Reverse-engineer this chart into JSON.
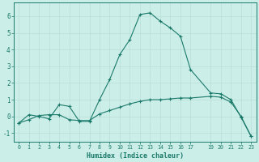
{
  "xlabel": "Humidex (Indice chaleur)",
  "bg_color": "#cceee8",
  "line_color": "#1a7a6a",
  "grid_color": "#b8ddd8",
  "curve1_x": [
    0,
    1,
    2,
    3,
    4,
    5,
    6,
    7,
    8,
    9,
    10,
    11,
    12,
    13,
    14,
    15,
    16,
    17,
    19,
    20,
    21,
    22,
    23
  ],
  "curve1_y": [
    -0.4,
    0.1,
    0.0,
    -0.15,
    0.7,
    0.6,
    -0.3,
    -0.3,
    1.0,
    2.2,
    3.7,
    4.6,
    6.1,
    6.2,
    5.7,
    5.3,
    4.8,
    2.8,
    1.4,
    1.35,
    1.0,
    -0.05,
    -1.2
  ],
  "curve2_x": [
    0,
    1,
    2,
    3,
    4,
    5,
    6,
    7,
    8,
    9,
    10,
    11,
    12,
    13,
    14,
    15,
    16,
    17,
    19,
    20,
    21,
    22,
    23
  ],
  "curve2_y": [
    -0.4,
    -0.2,
    0.05,
    0.1,
    0.1,
    -0.2,
    -0.25,
    -0.25,
    0.15,
    0.35,
    0.55,
    0.75,
    0.9,
    1.0,
    1.0,
    1.05,
    1.1,
    1.1,
    1.2,
    1.15,
    0.85,
    0.0,
    -1.2
  ],
  "ylim": [
    -1.5,
    6.8
  ],
  "xlim": [
    -0.5,
    23.5
  ],
  "yticks": [
    -1,
    0,
    1,
    2,
    3,
    4,
    5,
    6
  ],
  "xtick_positions": [
    0,
    1,
    2,
    3,
    4,
    5,
    6,
    7,
    8,
    9,
    10,
    11,
    12,
    13,
    14,
    15,
    16,
    17,
    19,
    20,
    21,
    22,
    23
  ],
  "xtick_labels": [
    "0",
    "1",
    "2",
    "3",
    "4",
    "5",
    "6",
    "7",
    "8",
    "9",
    "10",
    "11",
    "12",
    "13",
    "14",
    "15",
    "16",
    "17",
    "19",
    "20",
    "21",
    "22",
    "23"
  ],
  "figsize": [
    3.2,
    2.0
  ],
  "dpi": 100
}
